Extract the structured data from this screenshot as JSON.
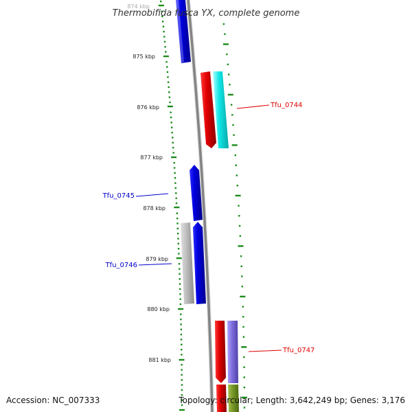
{
  "title": "Thermobifida fusca YX, complete genome",
  "footer": {
    "accession": "Accession: NC_007333",
    "stats": "Topology: circular; Length: 3,642,249 bp; Genes: 3,176"
  },
  "ruler": {
    "labels": [
      "874 kbp",
      "875 kbp",
      "876 kbp",
      "877 kbp",
      "878 kbp",
      "879 kbp",
      "880 kbp",
      "881 kbp"
    ]
  },
  "genes": {
    "tfu_0744": "Tfu_0744",
    "tfu_0745": "Tfu_0745",
    "tfu_0746": "Tfu_0746",
    "tfu_0747": "Tfu_0747"
  },
  "colors": {
    "blue": "#0a0ae6",
    "red": "#e60a0a",
    "cyan": "#16e6e6",
    "gray": "#b4b4b4",
    "purple": "#8a78e0",
    "olive": "#7a9a2a",
    "tick_green": "#1a8a1a",
    "backbone": "#8a8a8a"
  }
}
